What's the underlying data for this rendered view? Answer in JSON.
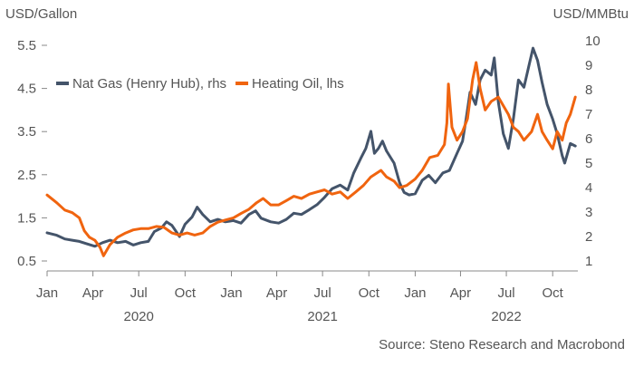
{
  "chart_data": {
    "type": "line",
    "left_axis_label": "USD/Gallon",
    "right_axis_label": "USD/MMBtu",
    "left_ticks": [
      0.5,
      1.5,
      2.5,
      3.5,
      4.5,
      5.5
    ],
    "right_ticks": [
      1,
      2,
      3,
      4,
      5,
      6,
      7,
      8,
      9,
      10
    ],
    "left_ylim": [
      0.5,
      5.5
    ],
    "right_ylim": [
      1,
      10
    ],
    "x_range": [
      "2020-01-01",
      "2022-11-20"
    ],
    "x_ticks": [
      {
        "date": "2020-01-01",
        "label": "Jan"
      },
      {
        "date": "2020-04-01",
        "label": "Apr"
      },
      {
        "date": "2020-07-01",
        "label": "Jul"
      },
      {
        "date": "2020-10-01",
        "label": "Oct"
      },
      {
        "date": "2021-01-01",
        "label": "Jan"
      },
      {
        "date": "2021-04-01",
        "label": "Apr"
      },
      {
        "date": "2021-07-01",
        "label": "Jul"
      },
      {
        "date": "2021-10-01",
        "label": "Oct"
      },
      {
        "date": "2022-01-01",
        "label": "Jan"
      },
      {
        "date": "2022-04-01",
        "label": "Apr"
      },
      {
        "date": "2022-07-01",
        "label": "Jul"
      },
      {
        "date": "2022-10-01",
        "label": "Oct"
      }
    ],
    "year_labels": [
      {
        "date": "2020-07-01",
        "label": "2020"
      },
      {
        "date": "2021-07-01",
        "label": "2021"
      },
      {
        "date": "2022-07-01",
        "label": "2022"
      }
    ],
    "source": "Source: Steno Research and Macrobond",
    "grid": false,
    "legend_position": "top-left",
    "series": [
      {
        "name": "Nat Gas (Henry Hub), rhs",
        "axis": "right",
        "color": "#44546a",
        "points": [
          [
            "2020-01-01",
            2.15
          ],
          [
            "2020-01-20",
            2.05
          ],
          [
            "2020-02-05",
            1.9
          ],
          [
            "2020-02-20",
            1.85
          ],
          [
            "2020-03-05",
            1.8
          ],
          [
            "2020-03-20",
            1.7
          ],
          [
            "2020-04-05",
            1.6
          ],
          [
            "2020-04-20",
            1.75
          ],
          [
            "2020-05-05",
            1.85
          ],
          [
            "2020-05-20",
            1.75
          ],
          [
            "2020-06-05",
            1.8
          ],
          [
            "2020-06-20",
            1.65
          ],
          [
            "2020-07-05",
            1.75
          ],
          [
            "2020-07-20",
            1.8
          ],
          [
            "2020-08-01",
            2.2
          ],
          [
            "2020-08-15",
            2.35
          ],
          [
            "2020-08-25",
            2.6
          ],
          [
            "2020-09-05",
            2.45
          ],
          [
            "2020-09-20",
            2.0
          ],
          [
            "2020-10-01",
            2.5
          ],
          [
            "2020-10-15",
            2.8
          ],
          [
            "2020-10-25",
            3.2
          ],
          [
            "2020-11-05",
            2.9
          ],
          [
            "2020-11-20",
            2.6
          ],
          [
            "2020-12-05",
            2.7
          ],
          [
            "2020-12-20",
            2.6
          ],
          [
            "2021-01-05",
            2.65
          ],
          [
            "2021-01-20",
            2.55
          ],
          [
            "2021-02-05",
            2.9
          ],
          [
            "2021-02-18",
            3.05
          ],
          [
            "2021-03-01",
            2.75
          ],
          [
            "2021-03-20",
            2.6
          ],
          [
            "2021-04-05",
            2.55
          ],
          [
            "2021-04-20",
            2.7
          ],
          [
            "2021-05-05",
            2.95
          ],
          [
            "2021-05-20",
            2.9
          ],
          [
            "2021-06-05",
            3.1
          ],
          [
            "2021-06-20",
            3.3
          ],
          [
            "2021-07-05",
            3.6
          ],
          [
            "2021-07-20",
            3.95
          ],
          [
            "2021-08-05",
            4.1
          ],
          [
            "2021-08-20",
            3.9
          ],
          [
            "2021-09-01",
            4.6
          ],
          [
            "2021-09-15",
            5.2
          ],
          [
            "2021-09-25",
            5.6
          ],
          [
            "2021-10-05",
            6.3
          ],
          [
            "2021-10-12",
            5.4
          ],
          [
            "2021-10-20",
            5.6
          ],
          [
            "2021-10-28",
            5.9
          ],
          [
            "2021-11-05",
            5.5
          ],
          [
            "2021-11-20",
            5.0
          ],
          [
            "2021-12-01",
            4.2
          ],
          [
            "2021-12-10",
            3.8
          ],
          [
            "2021-12-20",
            3.7
          ],
          [
            "2022-01-01",
            3.75
          ],
          [
            "2022-01-15",
            4.3
          ],
          [
            "2022-01-28",
            4.5
          ],
          [
            "2022-02-10",
            4.2
          ],
          [
            "2022-02-25",
            4.6
          ],
          [
            "2022-03-10",
            4.7
          ],
          [
            "2022-03-25",
            5.4
          ],
          [
            "2022-04-05",
            5.9
          ],
          [
            "2022-04-12",
            6.8
          ],
          [
            "2022-04-20",
            7.9
          ],
          [
            "2022-05-01",
            7.4
          ],
          [
            "2022-05-10",
            8.4
          ],
          [
            "2022-05-20",
            8.8
          ],
          [
            "2022-06-01",
            8.6
          ],
          [
            "2022-06-07",
            9.3
          ],
          [
            "2022-06-15",
            7.5
          ],
          [
            "2022-06-25",
            6.2
          ],
          [
            "2022-07-05",
            5.6
          ],
          [
            "2022-07-15",
            6.8
          ],
          [
            "2022-07-25",
            8.4
          ],
          [
            "2022-08-05",
            8.1
          ],
          [
            "2022-08-15",
            9.0
          ],
          [
            "2022-08-23",
            9.7
          ],
          [
            "2022-09-01",
            9.2
          ],
          [
            "2022-09-10",
            8.3
          ],
          [
            "2022-09-20",
            7.4
          ],
          [
            "2022-10-01",
            6.8
          ],
          [
            "2022-10-10",
            6.2
          ],
          [
            "2022-10-20",
            5.3
          ],
          [
            "2022-10-25",
            5.0
          ],
          [
            "2022-11-05",
            5.8
          ],
          [
            "2022-11-15",
            5.7
          ]
        ]
      },
      {
        "name": "Heating Oil, lhs",
        "axis": "left",
        "color": "#f0640f",
        "points": [
          [
            "2020-01-01",
            2.03
          ],
          [
            "2020-01-20",
            1.85
          ],
          [
            "2020-02-05",
            1.68
          ],
          [
            "2020-02-20",
            1.62
          ],
          [
            "2020-03-05",
            1.5
          ],
          [
            "2020-03-15",
            1.2
          ],
          [
            "2020-03-25",
            1.05
          ],
          [
            "2020-04-05",
            0.98
          ],
          [
            "2020-04-15",
            0.82
          ],
          [
            "2020-04-22",
            0.62
          ],
          [
            "2020-05-05",
            0.88
          ],
          [
            "2020-05-20",
            1.05
          ],
          [
            "2020-06-05",
            1.15
          ],
          [
            "2020-06-20",
            1.22
          ],
          [
            "2020-07-05",
            1.25
          ],
          [
            "2020-07-20",
            1.25
          ],
          [
            "2020-08-05",
            1.3
          ],
          [
            "2020-08-20",
            1.28
          ],
          [
            "2020-09-05",
            1.15
          ],
          [
            "2020-09-20",
            1.1
          ],
          [
            "2020-10-05",
            1.15
          ],
          [
            "2020-10-20",
            1.1
          ],
          [
            "2020-11-05",
            1.15
          ],
          [
            "2020-11-20",
            1.3
          ],
          [
            "2020-12-05",
            1.4
          ],
          [
            "2020-12-20",
            1.45
          ],
          [
            "2021-01-05",
            1.5
          ],
          [
            "2021-01-20",
            1.6
          ],
          [
            "2021-02-05",
            1.7
          ],
          [
            "2021-02-20",
            1.85
          ],
          [
            "2021-03-05",
            1.95
          ],
          [
            "2021-03-20",
            1.8
          ],
          [
            "2021-04-05",
            1.8
          ],
          [
            "2021-04-20",
            1.9
          ],
          [
            "2021-05-05",
            2.0
          ],
          [
            "2021-05-20",
            1.95
          ],
          [
            "2021-06-05",
            2.05
          ],
          [
            "2021-06-20",
            2.1
          ],
          [
            "2021-07-05",
            2.15
          ],
          [
            "2021-07-20",
            2.05
          ],
          [
            "2021-08-05",
            2.1
          ],
          [
            "2021-08-20",
            1.95
          ],
          [
            "2021-09-05",
            2.1
          ],
          [
            "2021-09-20",
            2.25
          ],
          [
            "2021-10-05",
            2.45
          ],
          [
            "2021-10-25",
            2.6
          ],
          [
            "2021-11-05",
            2.45
          ],
          [
            "2021-11-20",
            2.35
          ],
          [
            "2021-12-01",
            2.2
          ],
          [
            "2021-12-15",
            2.25
          ],
          [
            "2022-01-01",
            2.4
          ],
          [
            "2022-01-15",
            2.6
          ],
          [
            "2022-01-30",
            2.9
          ],
          [
            "2022-02-15",
            2.95
          ],
          [
            "2022-02-28",
            3.2
          ],
          [
            "2022-03-05",
            3.7
          ],
          [
            "2022-03-08",
            4.6
          ],
          [
            "2022-03-15",
            3.6
          ],
          [
            "2022-03-25",
            3.3
          ],
          [
            "2022-04-05",
            3.5
          ],
          [
            "2022-04-15",
            3.8
          ],
          [
            "2022-04-25",
            4.7
          ],
          [
            "2022-05-02",
            5.1
          ],
          [
            "2022-05-10",
            4.5
          ],
          [
            "2022-05-20",
            4.0
          ],
          [
            "2022-06-01",
            4.2
          ],
          [
            "2022-06-15",
            4.3
          ],
          [
            "2022-06-25",
            4.1
          ],
          [
            "2022-07-05",
            3.9
          ],
          [
            "2022-07-15",
            3.6
          ],
          [
            "2022-07-25",
            3.5
          ],
          [
            "2022-08-05",
            3.3
          ],
          [
            "2022-08-20",
            3.5
          ],
          [
            "2022-09-01",
            3.9
          ],
          [
            "2022-09-10",
            3.5
          ],
          [
            "2022-09-20",
            3.3
          ],
          [
            "2022-10-01",
            3.1
          ],
          [
            "2022-10-10",
            3.5
          ],
          [
            "2022-10-20",
            3.3
          ],
          [
            "2022-10-28",
            3.7
          ],
          [
            "2022-11-05",
            3.9
          ],
          [
            "2022-11-15",
            4.3
          ]
        ]
      }
    ]
  }
}
